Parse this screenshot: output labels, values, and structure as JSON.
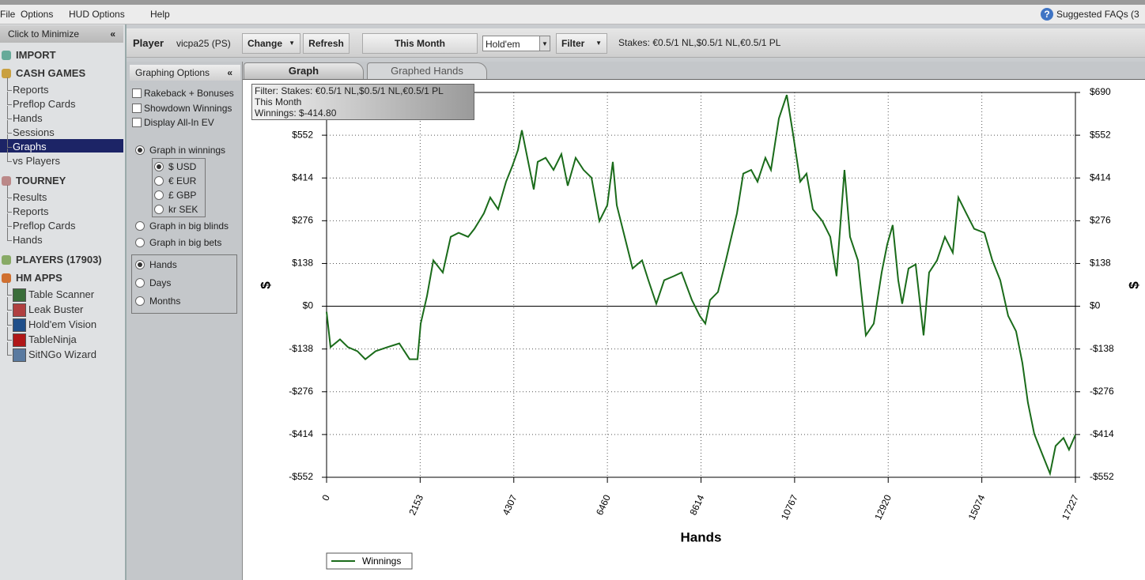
{
  "menu": [
    "File",
    "Options",
    "HUD Options",
    "Help"
  ],
  "faq": "Suggested FAQs (3",
  "sidebar": {
    "minimize": "Click to Minimize",
    "sections": [
      {
        "title": "IMPORT"
      },
      {
        "title": "CASH GAMES",
        "items": [
          {
            "label": "Reports"
          },
          {
            "label": "Preflop Cards"
          },
          {
            "label": "Hands"
          },
          {
            "label": "Sessions"
          },
          {
            "label": "Graphs",
            "selected": true
          },
          {
            "label": "vs Players"
          }
        ]
      },
      {
        "title": "TOURNEY",
        "items": [
          {
            "label": "Results"
          },
          {
            "label": "Reports"
          },
          {
            "label": "Preflop Cards"
          },
          {
            "label": "Hands"
          }
        ]
      },
      {
        "title": "PLAYERS (17903)"
      },
      {
        "title": "HM APPS",
        "items": [
          {
            "label": "Table Scanner",
            "color": "#3a6e3a"
          },
          {
            "label": "Leak Buster",
            "color": "#b04040"
          },
          {
            "label": "Hold'em Vision",
            "color": "#1f4f8a"
          },
          {
            "label": "TableNinja",
            "color": "#b01818"
          },
          {
            "label": "SitNGo Wizard",
            "color": "#5a7aa0"
          }
        ]
      }
    ]
  },
  "toolbar": {
    "player_label": "Player",
    "player": "vicpa25 (PS)",
    "change": "Change",
    "refresh": "Refresh",
    "period": "This Month",
    "game": "Hold'em",
    "filter": "Filter",
    "stakes": "Stakes: €0.5/1 NL,$0.5/1 NL,€0.5/1 PL"
  },
  "options": {
    "title": "Graphing Options",
    "checkboxes": [
      {
        "label": "Rakeback + Bonuses",
        "checked": false
      },
      {
        "label": "Showdown Winnings",
        "checked": false
      },
      {
        "label": "Display All-In EV",
        "checked": false
      }
    ],
    "modes": [
      {
        "label": "Graph in winnings",
        "checked": true
      },
      {
        "label": "Graph in big blinds",
        "checked": false
      },
      {
        "label": "Graph in big bets",
        "checked": false
      }
    ],
    "currencies": [
      {
        "label": "$ USD",
        "checked": true
      },
      {
        "label": "€ EUR",
        "checked": false
      },
      {
        "label": "£ GBP",
        "checked": false
      },
      {
        "label": "kr SEK",
        "checked": false
      }
    ],
    "x_units": [
      {
        "label": "Hands",
        "checked": true
      },
      {
        "label": "Days",
        "checked": false
      },
      {
        "label": "Months",
        "checked": false
      }
    ]
  },
  "tabs": [
    {
      "label": "Graph",
      "active": true
    },
    {
      "label": "Graphed Hands",
      "active": false
    }
  ],
  "chart_data": {
    "type": "line",
    "x_label": "Hands",
    "y_label": "$",
    "annotations": [
      "Filter: Stakes: €0.5/1 NL,$0.5/1 NL,€0.5/1 PL",
      "This Month",
      "Winnings: $-414.80"
    ],
    "x": [
      0,
      91,
      309,
      491,
      709,
      891,
      1128,
      1401,
      1673,
      1910,
      2092,
      2165,
      2310,
      2456,
      2674,
      2856,
      3038,
      3256,
      3402,
      3620,
      3765,
      3947,
      4129,
      4275,
      4402,
      4493,
      4584,
      4766,
      4857,
      5039,
      5221,
      5402,
      5548,
      5730,
      5912,
      6094,
      6276,
      6458,
      6585,
      6676,
      6858,
      7040,
      7258,
      7403,
      7585,
      7767,
      7985,
      8167,
      8404,
      8586,
      8713,
      8822,
      9004,
      9186,
      9313,
      9441,
      9586,
      9768,
      9914,
      10095,
      10223,
      10405,
      10587,
      10732,
      10896,
      11041,
      11187,
      11405,
      11587,
      11732,
      11914,
      12042,
      12224,
      12406,
      12588,
      12770,
      12897,
      13024,
      13151,
      13242,
      13388,
      13552,
      13734,
      13861,
      14043,
      14224,
      14406,
      14534,
      14716,
      14898,
      15134,
      15316,
      15498,
      15680,
      15862,
      16007,
      16134,
      16280,
      16461,
      16643,
      16771,
      16953,
      17080,
      17227
    ],
    "series": [
      {
        "name": "Winnings",
        "color": "#1a6b1a",
        "values": [
          -18,
          -132,
          -107,
          -132,
          -145,
          -171,
          -145,
          -132,
          -120,
          -171,
          -171,
          -56,
          33,
          148,
          109,
          224,
          237,
          224,
          250,
          300,
          351,
          313,
          402,
          453,
          504,
          568,
          504,
          377,
          466,
          479,
          440,
          491,
          389,
          479,
          440,
          415,
          275,
          326,
          466,
          326,
          224,
          122,
          148,
          84,
          8,
          84,
          97,
          109,
          20,
          -31,
          -56,
          20,
          46,
          148,
          224,
          300,
          428,
          440,
          402,
          479,
          440,
          606,
          682,
          555,
          402,
          428,
          313,
          275,
          224,
          97,
          440,
          224,
          148,
          -94,
          -56,
          109,
          199,
          262,
          84,
          8,
          122,
          135,
          -94,
          109,
          148,
          224,
          173,
          351,
          300,
          250,
          237,
          148,
          84,
          -31,
          -81,
          -183,
          -311,
          -412,
          -476,
          -540,
          -451,
          -425,
          -463,
          -415
        ]
      }
    ],
    "xlim": [
      0,
      17227
    ],
    "ylim": [
      -552,
      690
    ],
    "xticks": [
      0,
      2153,
      4307,
      6460,
      8614,
      10767,
      12920,
      15074,
      17227
    ],
    "yticks": [
      {
        "value": -552,
        "label": "-$552"
      },
      {
        "value": -414,
        "label": "-$414"
      },
      {
        "value": -276,
        "label": "-$276"
      },
      {
        "value": -138,
        "label": "-$138"
      },
      {
        "value": 0,
        "label": "$0"
      },
      {
        "value": 138,
        "label": "$138"
      },
      {
        "value": 276,
        "label": "$276"
      },
      {
        "value": 414,
        "label": "$414"
      },
      {
        "value": 552,
        "label": "$552"
      },
      {
        "value": 690,
        "label": "$690"
      }
    ],
    "grid": true
  }
}
